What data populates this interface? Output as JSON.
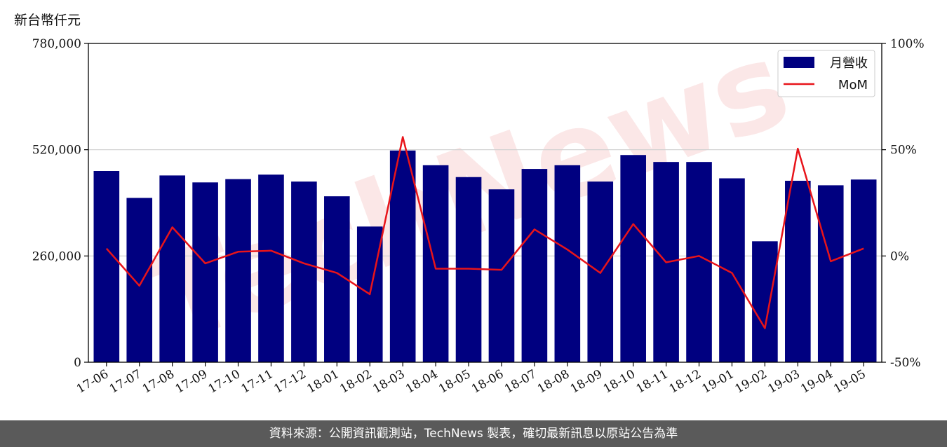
{
  "unit_label": "新台幣仟元",
  "footer": "資料來源：公開資訊觀測站，TechNews 製表，確切最新訊息以原站公告為準",
  "watermark": "TechNews",
  "colors": {
    "bar": "#000080",
    "line": "#e8141a",
    "grid": "#cfcfcf",
    "footer_bg": "#5a5a5a"
  },
  "chart_data": {
    "type": "bar",
    "categories": [
      "17-06",
      "17-07",
      "17-08",
      "17-09",
      "17-10",
      "17-11",
      "17-12",
      "18-01",
      "18-02",
      "18-03",
      "18-04",
      "18-05",
      "18-06",
      "18-07",
      "18-08",
      "18-09",
      "18-10",
      "18-11",
      "18-12",
      "19-01",
      "19-02",
      "19-03",
      "19-04",
      "19-05"
    ],
    "series": [
      {
        "name": "月營收",
        "type": "bar",
        "axis": "left",
        "values": [
          468000,
          402000,
          457000,
          440000,
          448000,
          459000,
          442000,
          406000,
          332000,
          518000,
          482000,
          453000,
          423000,
          473000,
          482000,
          442000,
          507000,
          490000,
          490000,
          450000,
          296000,
          444000,
          433000,
          447000
        ]
      },
      {
        "name": "MoM",
        "type": "line",
        "axis": "right",
        "values": [
          3.5,
          -14,
          13.5,
          -3.5,
          2,
          2.5,
          -3.5,
          -8,
          -18,
          56,
          -6,
          -6,
          -6.5,
          12.5,
          3,
          -8,
          15,
          -3,
          0,
          -8,
          -34,
          50.5,
          -2.5,
          3.5
        ]
      }
    ],
    "left_axis": {
      "min": 0,
      "max": 780000,
      "ticks": [
        0,
        260000,
        520000,
        780000
      ],
      "tick_labels": [
        "0",
        "260,000",
        "520,000",
        "780,000"
      ]
    },
    "right_axis": {
      "min": -50,
      "max": 100,
      "ticks": [
        -50,
        0,
        50,
        100
      ],
      "tick_labels": [
        "-50%",
        "0%",
        "50%",
        "100%"
      ]
    },
    "grid": "horizontal",
    "legend_position": "top-right"
  }
}
